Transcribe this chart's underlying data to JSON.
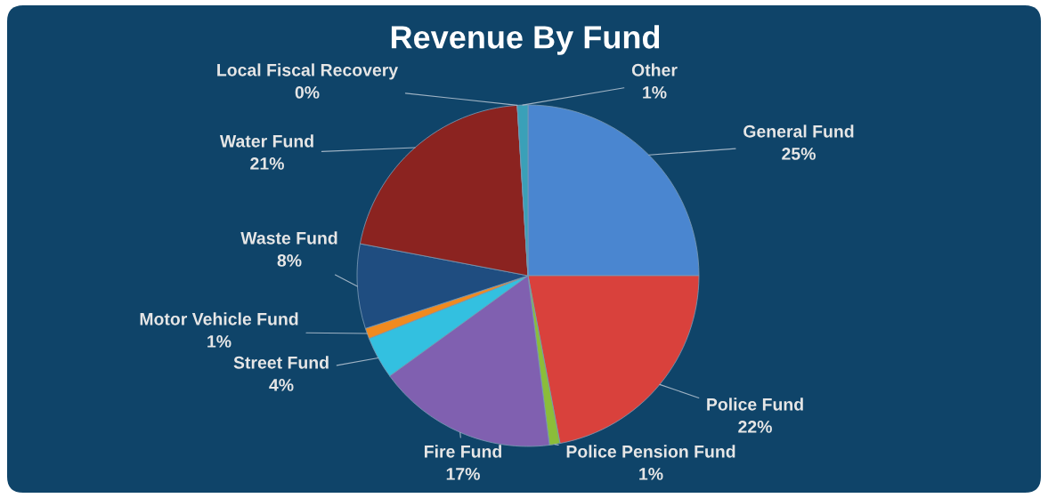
{
  "chart_data": {
    "type": "pie",
    "title": "Revenue By Fund",
    "categories": [
      "General Fund",
      "Police Fund",
      "Police Pension Fund",
      "Fire Fund",
      "Street Fund",
      "Motor Vehicle Fund",
      "Waste Fund",
      "Water Fund",
      "Local Fiscal Recovery",
      "Other"
    ],
    "values": [
      25,
      22,
      1,
      17,
      4,
      1,
      8,
      21,
      0,
      1
    ],
    "value_labels": [
      "25%",
      "22%",
      "1%",
      "17%",
      "4%",
      "1%",
      "8%",
      "21%",
      "0%",
      "1%"
    ],
    "colors": [
      "#4a86d0",
      "#d9413c",
      "#8bbd3a",
      "#8060b0",
      "#33c0e0",
      "#f08a20",
      "#1f4d80",
      "#8b2320",
      "#4bacc6",
      "#3aa0b8"
    ]
  }
}
